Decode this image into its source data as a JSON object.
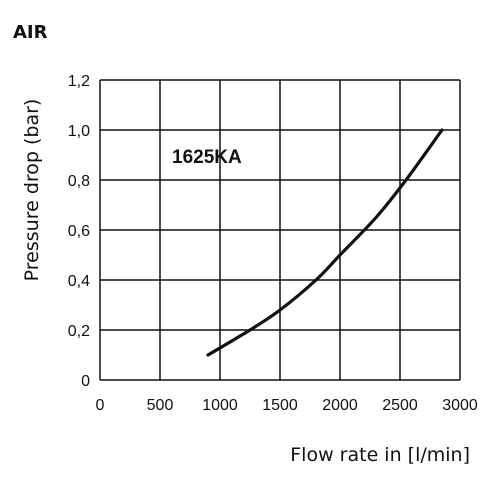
{
  "header": {
    "title": "AIR"
  },
  "chart_data": {
    "type": "line",
    "title": "",
    "xlabel": "Flow rate in [l/min]",
    "ylabel": "Pressure drop (bar)",
    "xlim": [
      0,
      3000
    ],
    "ylim": [
      0,
      1.2
    ],
    "x_ticks": [
      0,
      500,
      1000,
      1500,
      2000,
      2500,
      3000
    ],
    "x_tick_labels": [
      "0",
      "500",
      "1000",
      "1500",
      "2000",
      "2500",
      "3000"
    ],
    "y_ticks": [
      0,
      0.2,
      0.4,
      0.6,
      0.8,
      1.0,
      1.2
    ],
    "y_tick_labels": [
      "0",
      "0,2",
      "0,4",
      "0,6",
      "0,8",
      "1,0",
      "1,2"
    ],
    "grid": true,
    "series": [
      {
        "name": "1625KA",
        "color": "#111111",
        "x": [
          900,
          1250,
          1500,
          1800,
          2000,
          2300,
          2550,
          2850
        ],
        "y": [
          0.1,
          0.2,
          0.28,
          0.4,
          0.5,
          0.65,
          0.8,
          1.0
        ]
      }
    ]
  }
}
